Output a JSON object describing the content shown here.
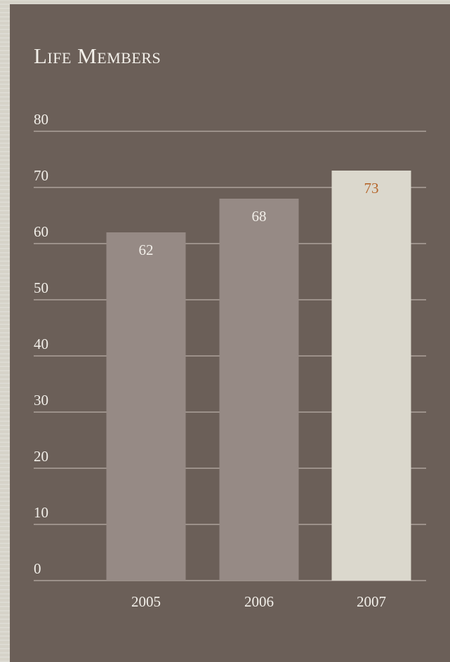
{
  "chart_data": {
    "type": "bar",
    "title": "Life Members",
    "categories": [
      "2005",
      "2006",
      "2007"
    ],
    "values": [
      62,
      68,
      73
    ],
    "value_labels": [
      "62",
      "68",
      "73"
    ],
    "ylim": [
      0,
      80
    ],
    "yticks": [
      "0",
      "10",
      "20",
      "30",
      "40",
      "50",
      "60",
      "70",
      "80"
    ],
    "grid": true,
    "colors": {
      "panel_background": "#6b5f58",
      "gridline": "#9c918a",
      "bar_default": "#968a85",
      "bar_highlight": "#dbd8cd",
      "text_light": "#f2efe9",
      "label_highlight": "#b5652a"
    },
    "highlight_index": 2
  }
}
